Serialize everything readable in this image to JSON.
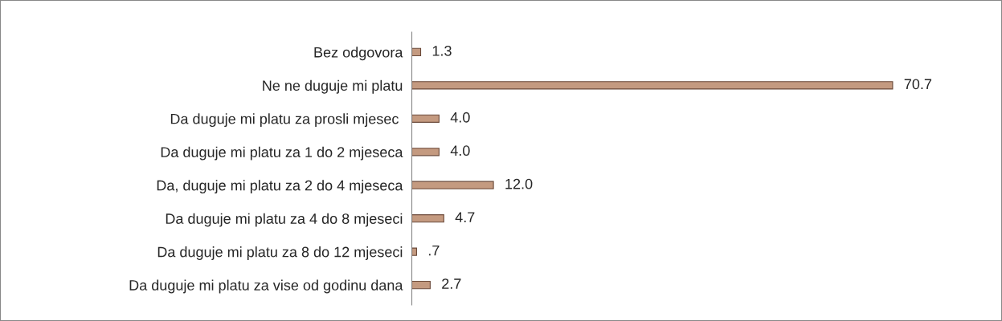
{
  "chart_data": {
    "type": "bar",
    "orientation": "horizontal",
    "categories": [
      "Bez odgovora",
      "Ne ne duguje mi platu",
      "Da duguje mi platu za prosli mjesec ",
      "Da duguje mi platu za 1 do 2 mjeseca",
      "Da, duguje mi platu za 2 do 4 mjeseca",
      "Da duguje mi platu za 4 do 8 mjeseci",
      "Da duguje mi platu za 8 do 12 mjeseci",
      "Da duguje mi platu za vise od godinu dana"
    ],
    "values": [
      1.3,
      70.7,
      4.0,
      4.0,
      12.0,
      4.7,
      0.7,
      2.7
    ],
    "value_labels": [
      "1.3",
      "70.7",
      "4.0",
      "4.0",
      "12.0",
      "4.7",
      ".7",
      "2.7"
    ],
    "color": "#c49a80",
    "tick_labels": "y",
    "grid": false,
    "legend": false
  }
}
